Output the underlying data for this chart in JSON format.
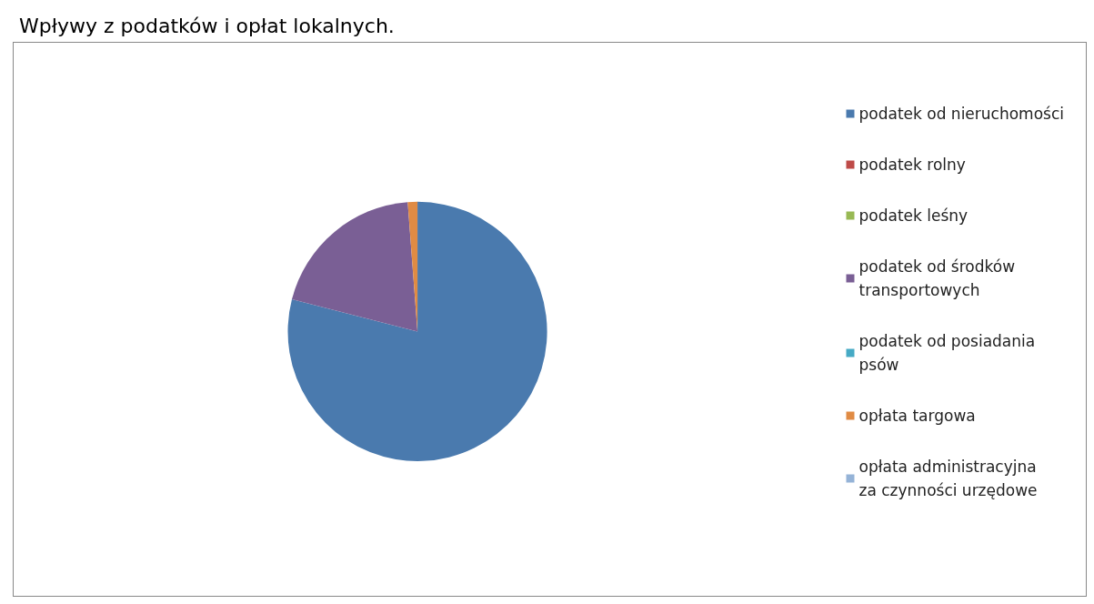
{
  "chart_data": {
    "type": "pie",
    "title": "Wpływy z podatków i opłat lokalnych.",
    "categories": [
      "podatek od nieruchomości",
      "podatek rolny",
      "podatek leśny",
      "podatek od środków transportowych",
      "podatek od posiadania psów",
      "opłata targowa",
      "opłata administracyjna za czynności urzędowe"
    ],
    "values": [
      79,
      0,
      0,
      19.8,
      0,
      1.2,
      0
    ],
    "colors": [
      "#4a7aae",
      "#be4b48",
      "#98b954",
      "#7a5f95",
      "#46aac5",
      "#e08b44",
      "#95b3d7"
    ],
    "legend": "right"
  }
}
